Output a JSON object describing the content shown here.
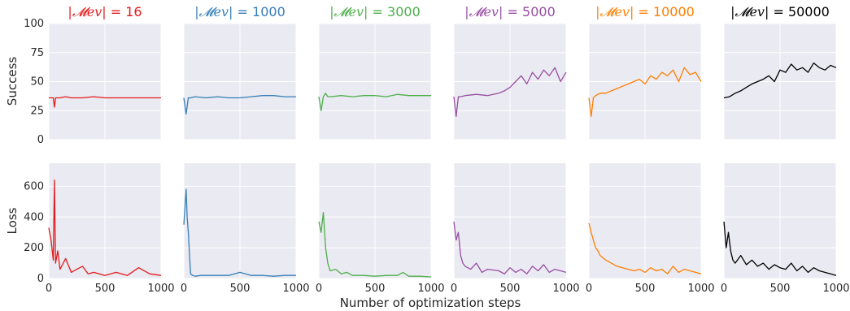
{
  "chart_data": {
    "type": "line",
    "xlabel": "Number of optimization steps",
    "x_ticks": [
      0,
      500,
      1000
    ],
    "xlim": [
      0,
      1000
    ],
    "grid": true,
    "rows": [
      {
        "ylabel": "Success",
        "ylim": [
          0,
          100
        ],
        "y_ticks": [
          0,
          25,
          50,
          75,
          100
        ]
      },
      {
        "ylabel": "Loss",
        "ylim": [
          0,
          750
        ],
        "y_ticks": [
          0,
          200,
          400,
          600
        ]
      }
    ],
    "panels": [
      {
        "title_symbol": "|𝓜ev|",
        "title_value": "= 16",
        "color": "#e41a1c",
        "success": {
          "x": [
            0,
            20,
            40,
            50,
            60,
            80,
            100,
            150,
            200,
            300,
            400,
            500,
            600,
            700,
            800,
            900,
            1000
          ],
          "y": [
            36,
            36,
            36,
            28,
            36,
            36,
            36,
            37,
            36,
            36,
            37,
            36,
            36,
            36,
            36,
            36,
            36
          ]
        },
        "loss": {
          "x": [
            0,
            20,
            40,
            50,
            60,
            80,
            100,
            150,
            200,
            250,
            300,
            350,
            400,
            500,
            600,
            700,
            800,
            900,
            1000
          ],
          "y": [
            330,
            250,
            120,
            640,
            100,
            180,
            60,
            130,
            40,
            60,
            80,
            30,
            40,
            20,
            40,
            20,
            70,
            30,
            20
          ]
        }
      },
      {
        "title_symbol": "|𝓜ev|",
        "title_value": "= 1000",
        "color": "#377eb8",
        "success": {
          "x": [
            0,
            20,
            40,
            60,
            100,
            200,
            300,
            400,
            500,
            600,
            700,
            800,
            900,
            1000
          ],
          "y": [
            36,
            22,
            36,
            36,
            37,
            36,
            37,
            36,
            36,
            37,
            38,
            38,
            37,
            37
          ]
        },
        "loss": {
          "x": [
            0,
            20,
            30,
            40,
            60,
            80,
            100,
            150,
            200,
            300,
            400,
            500,
            600,
            700,
            800,
            900,
            1000
          ],
          "y": [
            350,
            580,
            400,
            300,
            30,
            20,
            15,
            20,
            20,
            20,
            20,
            40,
            20,
            20,
            15,
            20,
            20
          ]
        }
      },
      {
        "title_symbol": "|𝓜ev|",
        "title_value": "= 3000",
        "color": "#4daf4a",
        "success": {
          "x": [
            0,
            20,
            40,
            60,
            80,
            100,
            200,
            300,
            400,
            500,
            600,
            700,
            800,
            900,
            1000
          ],
          "y": [
            37,
            25,
            37,
            40,
            37,
            37,
            38,
            37,
            38,
            38,
            37,
            39,
            38,
            38,
            38
          ]
        },
        "loss": {
          "x": [
            0,
            20,
            40,
            60,
            80,
            100,
            150,
            200,
            250,
            300,
            400,
            500,
            600,
            700,
            750,
            800,
            900,
            1000
          ],
          "y": [
            370,
            300,
            430,
            200,
            100,
            50,
            60,
            30,
            40,
            20,
            20,
            15,
            20,
            20,
            40,
            15,
            15,
            10
          ]
        }
      },
      {
        "title_symbol": "|𝓜ev|",
        "title_value": "= 5000",
        "color": "#984ea3",
        "success": {
          "x": [
            0,
            20,
            40,
            60,
            100,
            200,
            300,
            400,
            450,
            500,
            550,
            600,
            650,
            700,
            750,
            800,
            850,
            900,
            950,
            1000
          ],
          "y": [
            37,
            20,
            37,
            37,
            38,
            39,
            38,
            40,
            42,
            45,
            50,
            55,
            48,
            58,
            52,
            60,
            55,
            62,
            50,
            58
          ]
        },
        "loss": {
          "x": [
            0,
            20,
            40,
            60,
            80,
            100,
            150,
            200,
            250,
            300,
            400,
            450,
            500,
            550,
            600,
            650,
            700,
            750,
            800,
            850,
            900,
            950,
            1000
          ],
          "y": [
            370,
            250,
            300,
            150,
            100,
            80,
            60,
            100,
            40,
            60,
            50,
            30,
            70,
            40,
            60,
            30,
            80,
            50,
            90,
            40,
            60,
            50,
            40
          ]
        }
      },
      {
        "title_symbol": "|𝓜ev|",
        "title_value": "= 10000",
        "color": "#ff7f00",
        "success": {
          "x": [
            0,
            20,
            40,
            60,
            100,
            150,
            200,
            250,
            300,
            350,
            400,
            450,
            500,
            550,
            600,
            650,
            700,
            750,
            800,
            850,
            900,
            950,
            1000
          ],
          "y": [
            36,
            20,
            36,
            38,
            40,
            40,
            42,
            44,
            46,
            48,
            50,
            52,
            48,
            55,
            52,
            58,
            55,
            60,
            50,
            62,
            56,
            58,
            50
          ]
        },
        "loss": {
          "x": [
            0,
            20,
            40,
            60,
            80,
            100,
            150,
            200,
            250,
            300,
            350,
            400,
            450,
            500,
            550,
            600,
            650,
            700,
            750,
            800,
            850,
            900,
            950,
            1000
          ],
          "y": [
            360,
            300,
            250,
            200,
            180,
            150,
            120,
            100,
            80,
            70,
            60,
            50,
            60,
            40,
            70,
            50,
            60,
            30,
            80,
            40,
            60,
            50,
            40,
            30
          ]
        }
      },
      {
        "title_symbol": "|𝓜ev|",
        "title_value": "= 50000",
        "color": "#000000",
        "success": {
          "x": [
            0,
            50,
            100,
            150,
            200,
            250,
            300,
            350,
            400,
            450,
            500,
            550,
            600,
            650,
            700,
            750,
            800,
            850,
            900,
            950,
            1000
          ],
          "y": [
            36,
            37,
            40,
            42,
            45,
            48,
            50,
            52,
            55,
            50,
            60,
            58,
            65,
            60,
            62,
            58,
            66,
            62,
            60,
            64,
            62
          ]
        },
        "loss": {
          "x": [
            0,
            20,
            40,
            60,
            80,
            100,
            150,
            200,
            250,
            300,
            350,
            400,
            450,
            500,
            550,
            600,
            650,
            700,
            750,
            800,
            850,
            900,
            950,
            1000
          ],
          "y": [
            370,
            200,
            300,
            180,
            120,
            100,
            150,
            90,
            120,
            80,
            100,
            60,
            90,
            70,
            60,
            100,
            50,
            80,
            40,
            70,
            50,
            40,
            30,
            20
          ]
        }
      }
    ]
  }
}
